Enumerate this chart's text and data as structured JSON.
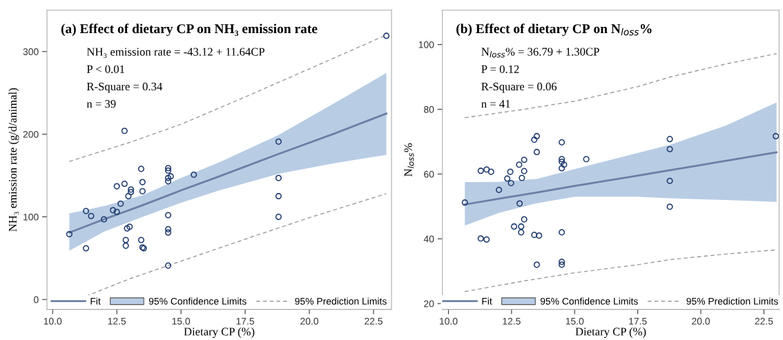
{
  "chart_data": [
    {
      "type": "scatter",
      "title": "(a) Effect of dietary CP on NH₃ emission rate",
      "xlabel": "Dietary CP (%)",
      "ylabel": "NH₃ emission rate (g/d/animal)",
      "annotations": [
        "NH₃ emission rate = -43.12 + 11.64CP",
        "P < 0.01",
        "R-Square = 0.34",
        "n = 39"
      ],
      "xlim": [
        9.78,
        23.2
      ],
      "ylim": [
        -12,
        350
      ],
      "xticks": [
        {
          "value": 10,
          "label": "10.0"
        },
        12.5,
        {
          "value": 15,
          "label": "15.0"
        },
        17.5,
        {
          "value": 20,
          "label": "20.0"
        },
        22.5
      ],
      "yticks": [
        0,
        100,
        200,
        300
      ],
      "grid": false,
      "legend": "bottom",
      "series": [
        {
          "type": "line",
          "name": "Fit",
          "color": "#6b7fa6",
          "line_style": "solid",
          "x": [
            10.65,
            12.0,
            13.5,
            15.0,
            16.5,
            18.8,
            21.0,
            23.0
          ],
          "values": [
            81,
            97,
            114,
            132,
            149,
            176,
            201,
            225
          ],
          "lower": [
            59,
            82,
            100,
            117,
            132,
            152,
            165,
            175
          ],
          "upper": [
            104,
            113,
            126,
            147,
            166,
            199,
            238,
            274
          ]
        },
        {
          "type": "area",
          "name": "95% Confidence Limits",
          "color": "#b8cce4"
        },
        {
          "type": "line",
          "name": "95% Prediction Limits",
          "color": "#999999",
          "line_style": "dashed",
          "x": [
            10.65,
            13.0,
            15.0,
            17.5,
            20.0,
            23.0
          ],
          "values": [
            167,
            190,
            212,
            245,
            279,
            320
          ]
        },
        {
          "type": "line",
          "color": "#999999",
          "line_style": "dashed",
          "x": [
            11.3,
            13.0,
            14.5,
            17.5,
            20.0,
            23.0
          ],
          "values": [
            4,
            25,
            41,
            73,
            99,
            128
          ]
        },
        {
          "color": "#1f3a6e",
          "marker": "circle",
          "x": [
            10.65,
            11.3,
            11.3,
            11.5,
            12.0,
            12.35,
            12.5,
            12.65,
            12.5,
            12.8,
            12.85,
            12.85,
            12.9,
            12.95,
            13.0,
            13.05,
            13.05,
            12.8,
            13.45,
            13.45,
            13.5,
            13.5,
            13.5,
            13.55,
            14.5,
            14.5,
            14.5,
            14.5,
            14.6,
            14.5,
            14.5,
            14.5,
            14.5,
            15.5,
            18.8,
            18.8,
            18.8,
            18.8,
            23.0
          ],
          "values": [
            79,
            62,
            107,
            101,
            97,
            108,
            106,
            116,
            137,
            140,
            65,
            72,
            86,
            125,
            88,
            133,
            130,
            204,
            158,
            72,
            142,
            131,
            63,
            62,
            159,
            156,
            143,
            147,
            149,
            102,
            85,
            81,
            41,
            151,
            191,
            147,
            125,
            100,
            319
          ]
        }
      ]
    },
    {
      "type": "scatter",
      "title": "(b) Effect of dietary CP on N$_{loss}$%",
      "xlabel": "Dietary CP (%)",
      "ylabel": "N$_{loss}$%",
      "annotations": [
        "N$_{loss}$% = 36.79 + 1.30CP",
        "P = 0.12",
        "R-Square = 0.06",
        "n = 41"
      ],
      "xlim": [
        9.76,
        23.1
      ],
      "ylim": [
        18.2,
        110.6
      ],
      "xticks": [
        {
          "value": 10,
          "label": "10.0"
        },
        12.5,
        {
          "value": 15,
          "label": "15.0"
        },
        17.5,
        {
          "value": 20,
          "label": "20.0"
        },
        22.5
      ],
      "yticks": [
        20,
        40,
        60,
        80,
        100
      ],
      "grid": false,
      "legend": "bottom",
      "series": [
        {
          "type": "line",
          "name": "Fit",
          "color": "#6b7fa6",
          "line_style": "solid",
          "x": [
            10.65,
            12.0,
            13.5,
            15.0,
            17.5,
            18.8,
            21.0,
            23.0
          ],
          "values": [
            50.6,
            52.4,
            54.3,
            56.3,
            59.5,
            61.2,
            64.1,
            66.7
          ],
          "lower": [
            44.1,
            48.0,
            51.0,
            53.0,
            53.0,
            52.5,
            52.0,
            51.4
          ],
          "upper": [
            57.5,
            57.6,
            58.5,
            61.5,
            66.5,
            69.1,
            75.0,
            82.1
          ]
        },
        {
          "type": "area",
          "name": "95% Confidence Limits",
          "color": "#b8cce4"
        },
        {
          "type": "line",
          "name": "95% Prediction Limits",
          "color": "#999999",
          "line_style": "dashed",
          "x": [
            10.65,
            13.0,
            15.0,
            17.5,
            18.8,
            21.0,
            23.0
          ],
          "values": [
            77.4,
            80,
            82.5,
            87,
            90,
            94,
            97.2
          ]
        },
        {
          "type": "line",
          "color": "#999999",
          "line_style": "dashed",
          "x": [
            10.65,
            13.0,
            15.0,
            17.5,
            18.8,
            21.0,
            23.0
          ],
          "values": [
            23.7,
            27,
            29.5,
            32,
            33.6,
            35.3,
            36.6
          ]
        },
        {
          "color": "#1f3a6e",
          "marker": "circle",
          "x": [
            10.65,
            11.28,
            11.51,
            11.69,
            12.0,
            12.33,
            12.45,
            12.48,
            12.6,
            12.82,
            12.88,
            12.88,
            12.91,
            13.0,
            13.0,
            11.28,
            11.51,
            13.4,
            13.59,
            13.5,
            14.49,
            14.49,
            14.49,
            14.49,
            14.58,
            18.77,
            18.77,
            12.8,
            13.0,
            13.4,
            13.5,
            13.5,
            14.49,
            14.49,
            14.49,
            15.46,
            18.77,
            18.77,
            22.97
          ],
          "values": [
            51.2,
            61.0,
            61.4,
            60.7,
            55.1,
            58.6,
            60.7,
            57.2,
            43.8,
            50.9,
            43.8,
            42.0,
            58.8,
            60.9,
            46.0,
            40.1,
            39.8,
            41.2,
            41.0,
            32.0,
            42.0,
            32.9,
            32.0,
            61.8,
            62.9,
            57.9,
            49.9,
            62.9,
            64.4,
            70.6,
            71.7,
            66.8,
            69.8,
            64.6,
            63.8,
            64.6,
            70.8,
            67.7,
            71.7
          ]
        }
      ]
    }
  ]
}
